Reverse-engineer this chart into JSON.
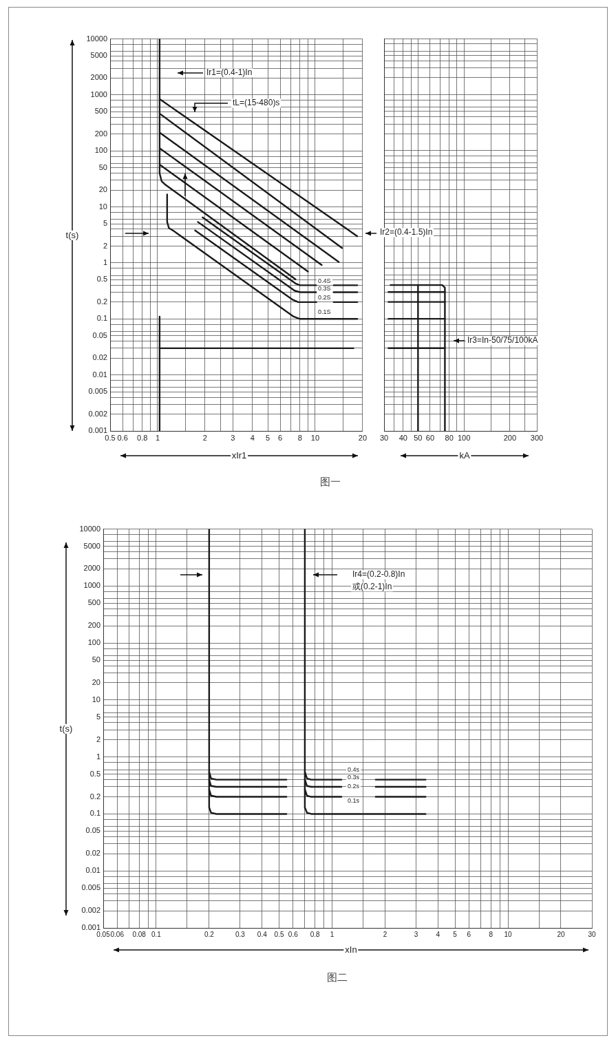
{
  "chart_data": [
    {
      "type": "line",
      "title": "图一",
      "xlabel": "xIr1",
      "ylabel": "t(s)",
      "log": "xy",
      "grid": true,
      "marker": "none",
      "line_style": "solid",
      "xlim": [
        0.5,
        20
      ],
      "xticks": [
        0.5,
        0.6,
        {
          "value": 0.7,
          "label": null
        },
        0.8,
        {
          "value": 0.9,
          "label": null
        },
        1,
        {
          "value": 1.5,
          "label": null
        },
        2,
        {
          "value": 2.5,
          "label": null
        },
        3,
        4,
        5,
        6,
        {
          "value": 7,
          "label": null
        },
        8,
        {
          "value": 9,
          "label": null
        },
        10,
        {
          "value": 15,
          "label": null
        },
        20
      ],
      "ylim": [
        0.001,
        10000
      ],
      "yticks": [
        0.001,
        0.002,
        {
          "value": 0.003,
          "label": null
        },
        {
          "value": 0.004,
          "label": null
        },
        0.005,
        {
          "value": 0.006,
          "label": null
        },
        {
          "value": 0.008,
          "label": null
        },
        0.01,
        0.02,
        {
          "value": 0.03,
          "label": null
        },
        {
          "value": 0.04,
          "label": null
        },
        0.05,
        {
          "value": 0.06,
          "label": null
        },
        {
          "value": 0.08,
          "label": null
        },
        0.1,
        0.2,
        {
          "value": 0.3,
          "label": null
        },
        {
          "value": 0.4,
          "label": null
        },
        0.5,
        {
          "value": 0.6,
          "label": null
        },
        {
          "value": 0.8,
          "label": null
        },
        1,
        2,
        {
          "value": 3,
          "label": null
        },
        {
          "value": 4,
          "label": null
        },
        5,
        {
          "value": 6,
          "label": null
        },
        {
          "value": 8,
          "label": null
        },
        10,
        20,
        {
          "value": 30,
          "label": null
        },
        {
          "value": 40,
          "label": null
        },
        50,
        {
          "value": 60,
          "label": null
        },
        {
          "value": 80,
          "label": null
        },
        100,
        200,
        {
          "value": 300,
          "label": null
        },
        {
          "value": 400,
          "label": null
        },
        500,
        {
          "value": 600,
          "label": null
        },
        {
          "value": 800,
          "label": null
        },
        1000,
        2000,
        {
          "value": 3000,
          "label": null
        },
        {
          "value": 4000,
          "label": null
        },
        5000,
        {
          "value": 6000,
          "label": null
        },
        {
          "value": 8000,
          "label": null
        },
        10000
      ],
      "series": [
        {
          "color": "#1a1a1a",
          "x": [
            1.03,
            1.03,
            1.06,
            1.12,
            7.5
          ],
          "values": [
            10000,
            40,
            29,
            25,
            0.51
          ]
        },
        {
          "color": "#1a1a1a",
          "x": [
            1.04,
            18.5
          ],
          "values": [
            830,
            3
          ]
        },
        {
          "color": "#1a1a1a",
          "x": [
            1.04,
            14.8
          ],
          "values": [
            457,
            1.85
          ]
        },
        {
          "color": "#1a1a1a",
          "x": [
            1.04,
            14.1
          ],
          "values": [
            209,
            1.04
          ]
        },
        {
          "color": "#1a1a1a",
          "x": [
            1.04,
            11
          ],
          "values": [
            110,
            0.92
          ]
        },
        {
          "color": "#1a1a1a",
          "x": [
            1.04,
            9
          ],
          "values": [
            56,
            0.7
          ]
        },
        {
          "color": "#1a1a1a",
          "x": [
            1.15,
            1.15,
            1.18,
            1.27,
            7.3,
            8,
            18.5
          ],
          "values": [
            16.7,
            5.4,
            4.2,
            3.7,
            0.11,
            0.1,
            0.1
          ]
        },
        {
          "color": "#1a1a1a",
          "x": [
            1.93,
            7.5,
            8,
            10.2,
            11.5,
            13.1,
            18.5
          ],
          "values": [
            6.5,
            0.43,
            0.4,
            0.4,
            null,
            0.4,
            0.4
          ]
        },
        {
          "color": "#1a1a1a",
          "x": [
            1.8,
            7.4,
            8,
            10.2,
            11.5,
            13.1,
            18.5
          ],
          "values": [
            5.4,
            0.32,
            0.3,
            0.3,
            null,
            0.3,
            0.3
          ]
        },
        {
          "color": "#1a1a1a",
          "x": [
            1.73,
            7.2,
            7.8,
            10.2,
            11.5,
            13.1,
            18.5
          ],
          "values": [
            3.8,
            0.22,
            0.2,
            0.2,
            null,
            0.2,
            0.2
          ]
        },
        {
          "color": "#1a1a1a",
          "x": [
            1.03,
            1.03
          ],
          "values": [
            0.11,
            0.001
          ]
        },
        {
          "color": "#1a1a1a",
          "x": [
            1.03,
            17.5
          ],
          "values": [
            0.03,
            0.03
          ]
        }
      ],
      "annotations": [
        "Ir1=(0.4-1)In",
        "tL=(15-480)s",
        "Ir2=(0.4-1.5)In",
        "0.4S",
        "0.3S",
        "0.2S",
        "0.1S"
      ]
    },
    {
      "type": "line",
      "xlabel": "kA",
      "log": "xy",
      "grid": true,
      "marker": "none",
      "line_style": "solid",
      "tick_labels": "x",
      "xlim": [
        30,
        300
      ],
      "xticks": [
        30,
        {
          "value": 35,
          "label": null
        },
        40,
        {
          "value": 45,
          "label": null
        },
        50,
        60,
        {
          "value": 70,
          "label": null
        },
        80,
        {
          "value": 90,
          "label": null
        },
        100,
        {
          "value": 150,
          "label": null
        },
        200,
        {
          "value": 250,
          "label": null
        },
        300
      ],
      "ylim": [
        0.001,
        10000
      ],
      "yticks": [
        0.001,
        0.002,
        {
          "value": 0.003,
          "label": null
        },
        {
          "value": 0.004,
          "label": null
        },
        0.005,
        {
          "value": 0.006,
          "label": null
        },
        {
          "value": 0.008,
          "label": null
        },
        0.01,
        0.02,
        {
          "value": 0.03,
          "label": null
        },
        {
          "value": 0.04,
          "label": null
        },
        0.05,
        {
          "value": 0.06,
          "label": null
        },
        {
          "value": 0.08,
          "label": null
        },
        0.1,
        0.2,
        {
          "value": 0.3,
          "label": null
        },
        {
          "value": 0.4,
          "label": null
        },
        0.5,
        {
          "value": 0.6,
          "label": null
        },
        {
          "value": 0.8,
          "label": null
        },
        1,
        2,
        {
          "value": 3,
          "label": null
        },
        {
          "value": 4,
          "label": null
        },
        5,
        {
          "value": 6,
          "label": null
        },
        {
          "value": 8,
          "label": null
        },
        10,
        20,
        {
          "value": 30,
          "label": null
        },
        {
          "value": 40,
          "label": null
        },
        50,
        {
          "value": 60,
          "label": null
        },
        {
          "value": 80,
          "label": null
        },
        100,
        200,
        {
          "value": 300,
          "label": null
        },
        {
          "value": 400,
          "label": null
        },
        500,
        {
          "value": 600,
          "label": null
        },
        {
          "value": 800,
          "label": null
        },
        1000,
        2000,
        {
          "value": 3000,
          "label": null
        },
        {
          "value": 4000,
          "label": null
        },
        5000,
        {
          "value": 6000,
          "label": null
        },
        {
          "value": 8000,
          "label": null
        },
        10000
      ],
      "series": [
        {
          "color": "#1a1a1a",
          "x": [
            33,
            72,
            75,
            75
          ],
          "values": [
            0.4,
            0.4,
            0.36,
            0.001
          ]
        },
        {
          "color": "#1a1a1a",
          "x": [
            50,
            50
          ],
          "values": [
            0.4,
            0.001
          ]
        },
        {
          "color": "#1a1a1a",
          "x": [
            32,
            75
          ],
          "values": [
            0.3,
            0.3
          ]
        },
        {
          "color": "#1a1a1a",
          "x": [
            32,
            75
          ],
          "values": [
            0.2,
            0.2
          ]
        },
        {
          "color": "#1a1a1a",
          "x": [
            32,
            75
          ],
          "values": [
            0.1,
            0.1
          ]
        },
        {
          "color": "#1a1a1a",
          "x": [
            32,
            75
          ],
          "values": [
            0.03,
            0.03
          ]
        }
      ],
      "annotations": [
        "Ir3=In-50/75/100kA"
      ]
    },
    {
      "type": "line",
      "title": "图二",
      "xlabel": "xIn",
      "ylabel": "t(s)",
      "log": "xy",
      "grid": true,
      "marker": "none",
      "line_style": "solid",
      "xlim": [
        0.05,
        30
      ],
      "xticks": [
        0.05,
        0.06,
        {
          "value": 0.07,
          "label": null
        },
        0.08,
        {
          "value": 0.09,
          "label": null
        },
        0.1,
        {
          "value": 0.15,
          "label": null
        },
        0.2,
        0.3,
        0.4,
        0.5,
        0.6,
        {
          "value": 0.7,
          "label": null
        },
        0.8,
        {
          "value": 0.9,
          "label": null
        },
        1,
        {
          "value": 1.5,
          "label": null
        },
        2,
        3,
        4,
        5,
        6,
        {
          "value": 7,
          "label": null
        },
        8,
        {
          "value": 9,
          "label": null
        },
        10,
        {
          "value": 15,
          "label": null
        },
        20,
        30
      ],
      "ylim": [
        0.001,
        10000
      ],
      "yticks": [
        0.001,
        0.002,
        {
          "value": 0.003,
          "label": null
        },
        {
          "value": 0.004,
          "label": null
        },
        0.005,
        {
          "value": 0.006,
          "label": null
        },
        {
          "value": 0.008,
          "label": null
        },
        0.01,
        0.02,
        {
          "value": 0.03,
          "label": null
        },
        {
          "value": 0.04,
          "label": null
        },
        0.05,
        {
          "value": 0.06,
          "label": null
        },
        {
          "value": 0.08,
          "label": null
        },
        0.1,
        0.2,
        {
          "value": 0.3,
          "label": null
        },
        {
          "value": 0.4,
          "label": null
        },
        0.5,
        {
          "value": 0.6,
          "label": null
        },
        {
          "value": 0.8,
          "label": null
        },
        1,
        2,
        {
          "value": 3,
          "label": null
        },
        {
          "value": 4,
          "label": null
        },
        5,
        {
          "value": 6,
          "label": null
        },
        {
          "value": 8,
          "label": null
        },
        10,
        20,
        {
          "value": 30,
          "label": null
        },
        {
          "value": 40,
          "label": null
        },
        50,
        {
          "value": 60,
          "label": null
        },
        {
          "value": 80,
          "label": null
        },
        100,
        200,
        {
          "value": 300,
          "label": null
        },
        {
          "value": 400,
          "label": null
        },
        500,
        {
          "value": 600,
          "label": null
        },
        {
          "value": 800,
          "label": null
        },
        1000,
        2000,
        {
          "value": 3000,
          "label": null
        },
        {
          "value": 4000,
          "label": null
        },
        5000,
        {
          "value": 6000,
          "label": null
        },
        {
          "value": 8000,
          "label": null
        },
        10000
      ],
      "series": [
        {
          "color": "#1a1a1a",
          "x": [
            0.2,
            0.2,
            0.205,
            0.22,
            0.55
          ],
          "values": [
            10000,
            0.13,
            0.105,
            0.1,
            0.1
          ]
        },
        {
          "color": "#1a1a1a",
          "x": [
            0.2,
            0.205,
            0.22,
            0.55
          ],
          "values": [
            0.27,
            0.21,
            0.2,
            0.2
          ]
        },
        {
          "color": "#1a1a1a",
          "x": [
            0.2,
            0.205,
            0.22,
            0.55
          ],
          "values": [
            0.4,
            0.31,
            0.3,
            0.3
          ]
        },
        {
          "color": "#1a1a1a",
          "x": [
            0.2,
            0.205,
            0.22,
            0.55
          ],
          "values": [
            0.55,
            0.42,
            0.4,
            0.4
          ]
        },
        {
          "color": "#1a1a1a",
          "x": [
            0.7,
            0.7,
            0.72,
            0.76,
            3.4
          ],
          "values": [
            10000,
            0.13,
            0.105,
            0.1,
            0.1
          ]
        },
        {
          "color": "#1a1a1a",
          "x": [
            0.7,
            0.72,
            0.76,
            1.13,
            1.45,
            1.77,
            3.4
          ],
          "values": [
            0.27,
            0.21,
            0.2,
            0.2,
            null,
            0.2,
            0.2
          ]
        },
        {
          "color": "#1a1a1a",
          "x": [
            0.7,
            0.72,
            0.76,
            1.13,
            1.45,
            1.77,
            3.4
          ],
          "values": [
            0.4,
            0.31,
            0.3,
            0.3,
            null,
            0.3,
            0.3
          ]
        },
        {
          "color": "#1a1a1a",
          "x": [
            0.7,
            0.72,
            0.76,
            1.13,
            1.45,
            1.77,
            3.4
          ],
          "values": [
            0.55,
            0.42,
            0.4,
            0.4,
            null,
            0.4,
            0.4
          ]
        }
      ],
      "annotations": [
        "Ir4=(0.2-0.8)In",
        "或(0.2-1)In",
        "0.4s",
        "0.3s",
        "0.2s",
        "0.1s"
      ]
    }
  ]
}
